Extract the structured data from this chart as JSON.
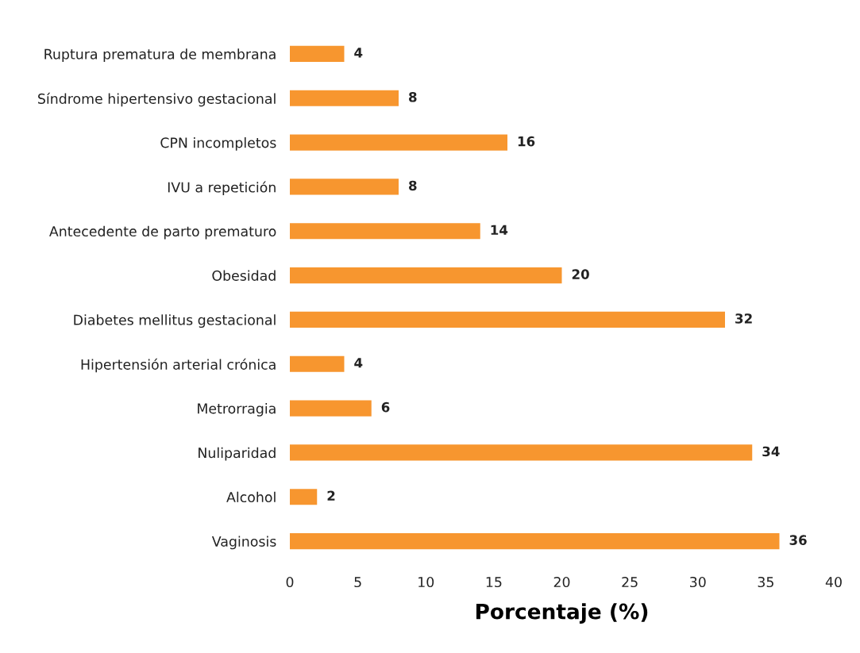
{
  "chart_data": {
    "type": "bar",
    "orientation": "horizontal",
    "categories": [
      "Ruptura prematura de membrana",
      "Síndrome hipertensivo gestacional",
      "CPN incompletos",
      "IVU a repetición",
      "Antecedente de parto prematuro",
      "Obesidad",
      "Diabetes mellitus gestacional",
      "Hipertensión arterial crónica",
      "Metrorragia",
      "Nuliparidad",
      "Alcohol",
      "Vaginosis"
    ],
    "values": [
      4,
      8,
      16,
      8,
      14,
      20,
      32,
      4,
      6,
      34,
      2,
      36
    ],
    "color": "#f7962f",
    "xlabel": "Porcentaje (%)",
    "xlim": [
      0,
      40
    ],
    "xticks": [
      0,
      5,
      10,
      15,
      20,
      25,
      30,
      35,
      40
    ],
    "data_labels": true
  }
}
